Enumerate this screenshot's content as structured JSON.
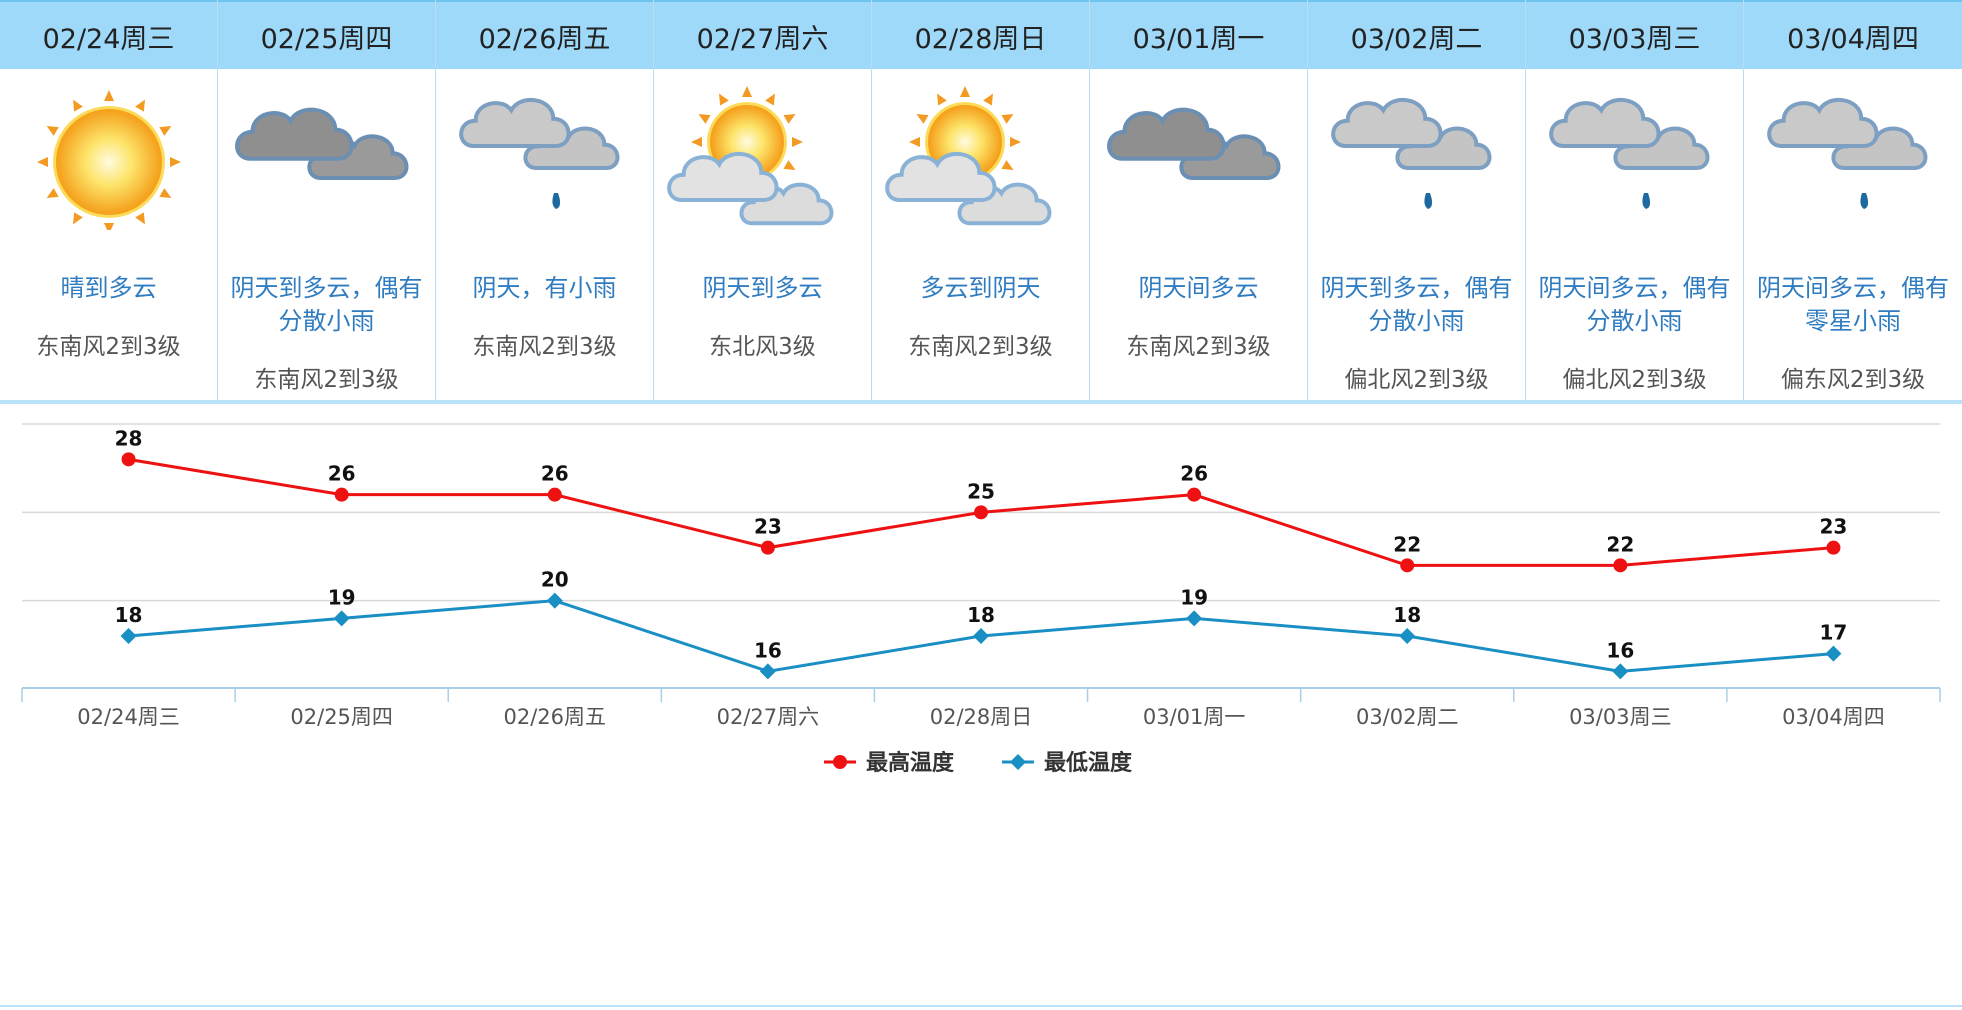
{
  "days": [
    {
      "date": "02/24周三",
      "weather": "晴到多云",
      "wind": "东南风2到3级",
      "icon": "sunny-icon"
    },
    {
      "date": "02/25周四",
      "weather": "阴天到多云，偶有分散小雨",
      "wind": "东南风2到3级",
      "icon": "overcast-icon"
    },
    {
      "date": "02/26周五",
      "weather": "阴天，有小雨",
      "wind": "东南风2到3级",
      "icon": "light-rain-icon"
    },
    {
      "date": "02/27周六",
      "weather": "阴天到多云",
      "wind": "东北风3级",
      "icon": "partly-cloudy-icon"
    },
    {
      "date": "02/28周日",
      "weather": "多云到阴天",
      "wind": "东南风2到3级",
      "icon": "partly-cloudy-icon"
    },
    {
      "date": "03/01周一",
      "weather": "阴天间多云",
      "wind": "东南风2到3级",
      "icon": "overcast-icon"
    },
    {
      "date": "03/02周二",
      "weather": "阴天到多云，偶有分散小雨",
      "wind": "偏北风2到3级",
      "icon": "light-rain-icon"
    },
    {
      "date": "03/03周三",
      "weather": "阴天间多云，偶有分散小雨",
      "wind": "偏北风2到3级",
      "icon": "light-rain-icon"
    },
    {
      "date": "03/04周四",
      "weather": "阴天间多云，偶有零星小雨",
      "wind": "偏东风2到3级",
      "icon": "light-rain-icon"
    }
  ],
  "colors": {
    "header_bg": "#9ed9f9",
    "desc": "#2f7cc0",
    "high": "#ee1111",
    "low": "#1a8fc4"
  },
  "chart_data": {
    "type": "line",
    "categories": [
      "02/24周三",
      "02/25周四",
      "02/26周五",
      "02/27周六",
      "02/28周日",
      "03/01周一",
      "03/02周二",
      "03/03周三",
      "03/04周四"
    ],
    "series": [
      {
        "name": "最高温度",
        "values": [
          28,
          26,
          26,
          23,
          25,
          26,
          22,
          22,
          23
        ],
        "color": "#ee1111",
        "marker": "circle"
      },
      {
        "name": "最低温度",
        "values": [
          18,
          19,
          20,
          16,
          18,
          19,
          18,
          16,
          17
        ],
        "color": "#1a8fc4",
        "marker": "diamond"
      }
    ],
    "ylim": [
      15,
      30
    ],
    "grid": true,
    "legend": "bottom-center",
    "data_labels": true
  }
}
